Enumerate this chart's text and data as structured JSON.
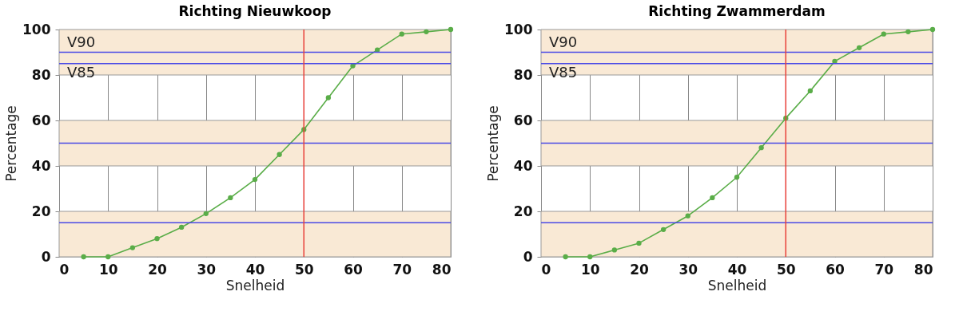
{
  "chart_data": [
    {
      "type": "line",
      "title": "Richting Nieuwkoop",
      "xlabel": "Snelheid",
      "ylabel": "Percentage",
      "x": [
        5,
        10,
        15,
        20,
        25,
        30,
        35,
        40,
        45,
        50,
        55,
        60,
        65,
        70,
        75,
        80
      ],
      "xlim": [
        0,
        80
      ],
      "xticks": [
        0,
        10,
        20,
        30,
        40,
        50,
        60,
        70,
        80
      ],
      "ylim": [
        0,
        100
      ],
      "yticks": [
        0,
        20,
        40,
        60,
        80,
        100
      ],
      "grid": "x",
      "marker": "circle",
      "line_style": "solid",
      "series": [
        {
          "color": "#5aad48",
          "values": [
            0,
            0,
            4,
            8,
            13,
            19,
            26,
            34,
            45,
            56,
            70,
            84,
            91,
            98,
            99,
            100
          ]
        }
      ],
      "bands": [
        {
          "axis": "y",
          "from": 0,
          "to": 20,
          "color": "#f9e9d5"
        },
        {
          "axis": "y",
          "from": 40,
          "to": 60,
          "color": "#f9e9d5"
        },
        {
          "axis": "y",
          "from": 80,
          "to": 100,
          "color": "#f9e9d5"
        }
      ],
      "ref_lines": [
        {
          "axis": "y",
          "value": 90,
          "label": "V90",
          "color": "#4a4ae6"
        },
        {
          "axis": "y",
          "value": 85,
          "label": "V85",
          "color": "#4a4ae6"
        },
        {
          "axis": "y",
          "value": 50,
          "color": "#4a4ae6"
        },
        {
          "axis": "y",
          "value": 15,
          "color": "#4a4ae6"
        },
        {
          "axis": "x",
          "value": 50,
          "color": "#e8413a"
        }
      ]
    },
    {
      "type": "line",
      "title": "Richting Zwammerdam",
      "xlabel": "Snelheid",
      "ylabel": "Percentage",
      "x": [
        5,
        10,
        15,
        20,
        25,
        30,
        35,
        40,
        45,
        50,
        55,
        60,
        65,
        70,
        75,
        80
      ],
      "xlim": [
        0,
        80
      ],
      "xticks": [
        0,
        10,
        20,
        30,
        40,
        50,
        60,
        70,
        80
      ],
      "ylim": [
        0,
        100
      ],
      "yticks": [
        0,
        20,
        40,
        60,
        80,
        100
      ],
      "grid": "x",
      "marker": "circle",
      "line_style": "solid",
      "series": [
        {
          "color": "#5aad48",
          "values": [
            0,
            0,
            3,
            6,
            12,
            18,
            26,
            35,
            48,
            61,
            73,
            86,
            92,
            98,
            99,
            100
          ]
        }
      ],
      "bands": [
        {
          "axis": "y",
          "from": 0,
          "to": 20,
          "color": "#f9e9d5"
        },
        {
          "axis": "y",
          "from": 40,
          "to": 60,
          "color": "#f9e9d5"
        },
        {
          "axis": "y",
          "from": 80,
          "to": 100,
          "color": "#f9e9d5"
        }
      ],
      "ref_lines": [
        {
          "axis": "y",
          "value": 90,
          "label": "V90",
          "color": "#4a4ae6"
        },
        {
          "axis": "y",
          "value": 85,
          "label": "V85",
          "color": "#4a4ae6"
        },
        {
          "axis": "y",
          "value": 50,
          "color": "#4a4ae6"
        },
        {
          "axis": "y",
          "value": 15,
          "color": "#4a4ae6"
        },
        {
          "axis": "x",
          "value": 50,
          "color": "#e8413a"
        }
      ]
    }
  ]
}
